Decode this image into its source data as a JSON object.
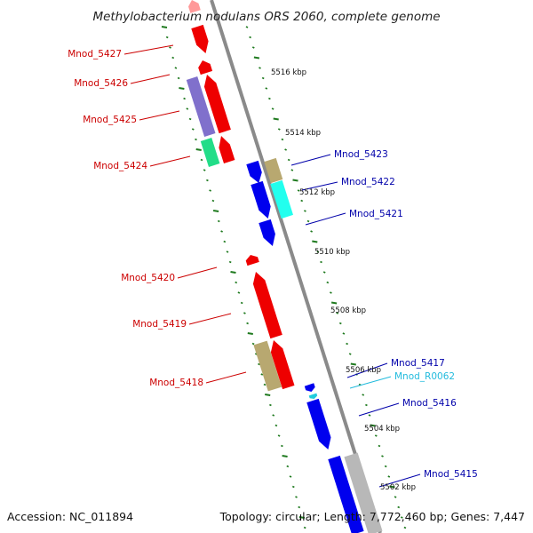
{
  "title": "Methylobacterium nodulans ORS 2060, complete genome",
  "footer": {
    "accession": "Accession: NC_011894",
    "summary": "Topology: circular; Length: 7,772,460 bp; Genes: 7,447"
  },
  "colors": {
    "backbone": "#8a8a8a",
    "tick": "#1f7a1f",
    "left_label": "#cc0000",
    "right_label": "#0000aa",
    "rna_label": "#22bbdd"
  },
  "scale": [
    {
      "id": "kbp-5516",
      "text": "5516 kbp"
    },
    {
      "id": "kbp-5514",
      "text": "5514 kbp"
    },
    {
      "id": "kbp-5512",
      "text": "5512 kbp"
    },
    {
      "id": "kbp-5510",
      "text": "5510 kbp"
    },
    {
      "id": "kbp-5508",
      "text": "5508 kbp"
    },
    {
      "id": "kbp-5506",
      "text": "5506 kbp"
    },
    {
      "id": "kbp-5504",
      "text": "5504 kbp"
    },
    {
      "id": "kbp-5502",
      "text": "5502 kbp"
    }
  ],
  "genes": [
    {
      "id": "Mnod_5427",
      "name": "Mnod_5427",
      "strand": "left",
      "color": "#ee0000",
      "labeled": true
    },
    {
      "id": "Mnod_5426",
      "name": "Mnod_5426",
      "strand": "left",
      "color": "#ee0000",
      "labeled": true
    },
    {
      "id": "Mnod_5425",
      "name": "Mnod_5425",
      "strand": "left",
      "color": "#ee0000",
      "labeled": true
    },
    {
      "id": "Mnod_5424",
      "name": "Mnod_5424",
      "strand": "left",
      "color": "#ee0000",
      "labeled": true
    },
    {
      "id": "Mnod_5423",
      "name": "Mnod_5423",
      "strand": "right",
      "color": "#0000ee",
      "labeled": true
    },
    {
      "id": "Mnod_5422",
      "name": "Mnod_5422",
      "strand": "right",
      "color": "#0000ee",
      "labeled": true
    },
    {
      "id": "Mnod_5421",
      "name": "Mnod_5421",
      "strand": "right",
      "color": "#0000ee",
      "labeled": true
    },
    {
      "id": "Mnod_5420",
      "name": "Mnod_5420",
      "strand": "left",
      "color": "#ee0000",
      "labeled": true
    },
    {
      "id": "Mnod_5419",
      "name": "Mnod_5419",
      "strand": "left",
      "color": "#ee0000",
      "labeled": true
    },
    {
      "id": "Mnod_5418",
      "name": "Mnod_5418",
      "strand": "left",
      "color": "#ee0000",
      "labeled": true
    },
    {
      "id": "Mnod_5417",
      "name": "Mnod_5417",
      "strand": "right",
      "color": "#0000ee",
      "labeled": true
    },
    {
      "id": "Mnod_R0062",
      "name": "Mnod_R0062",
      "strand": "right",
      "color": "#22ccdd",
      "labeled": true
    },
    {
      "id": "Mnod_5416",
      "name": "Mnod_5416",
      "strand": "right",
      "color": "#0000ee",
      "labeled": true
    },
    {
      "id": "Mnod_5415",
      "name": "Mnod_5415",
      "strand": "right",
      "color": "#0000ee",
      "labeled": true
    },
    {
      "id": "gene-partial-top",
      "name": "",
      "strand": "left",
      "color": "#ff9999",
      "labeled": false
    },
    {
      "id": "gene-partial-bottom",
      "name": "",
      "strand": "right",
      "color": "#0000ee",
      "labeled": false
    }
  ],
  "annotation_bars": [
    {
      "id": "ann-5425-cog",
      "color": "#8070cc"
    },
    {
      "id": "ann-5424-cog",
      "color": "#22dd88"
    },
    {
      "id": "ann-5423-cog",
      "color": "#b8a870"
    },
    {
      "id": "ann-5422-cog",
      "color": "#22ffee"
    },
    {
      "id": "ann-5418-cog",
      "color": "#b8a870"
    },
    {
      "id": "ann-5415-cog",
      "color": "#b8b8b8"
    }
  ]
}
